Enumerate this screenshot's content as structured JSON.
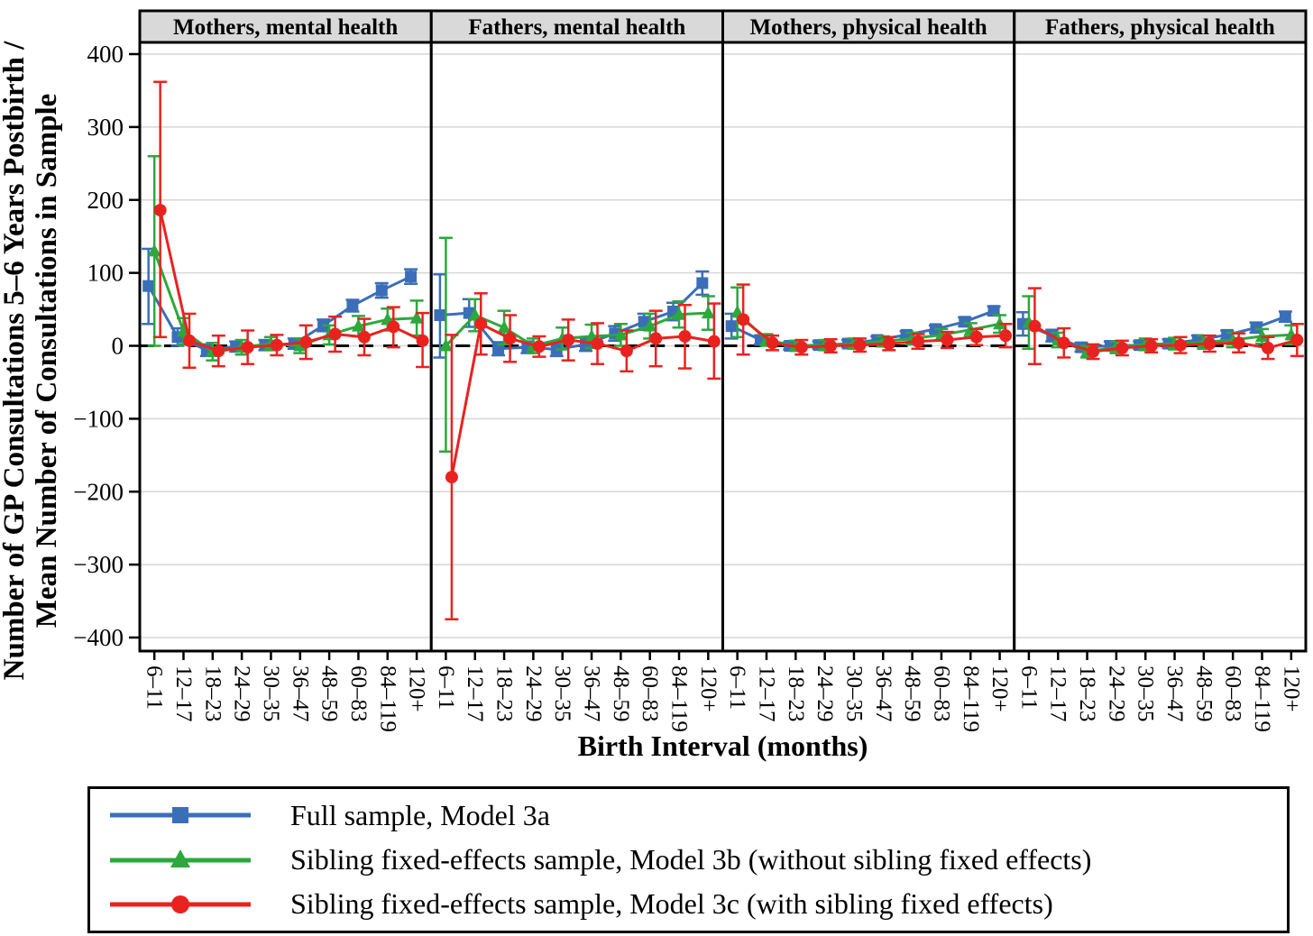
{
  "chart_data": {
    "type": "line",
    "subtype": "faceted-errorbar",
    "xlabel": "Birth Interval (months)",
    "ylabel_line1": "Number of GP Consultations 5–6 Years Postbirth /",
    "ylabel_line2": "Mean Number of Consultations in Sample",
    "categories": [
      "6–11",
      "12–17",
      "18–23",
      "24–29",
      "30–35",
      "36–47",
      "48–59",
      "60–83",
      "84–119",
      "120+"
    ],
    "ylim": [
      -400,
      400
    ],
    "ytick_values": [
      400,
      300,
      200,
      100,
      0,
      -100,
      -200,
      -300,
      -400
    ],
    "ytick_labels": [
      "400",
      "300",
      "200",
      "100",
      "0",
      "−100",
      "−200",
      "−300",
      "−400"
    ],
    "grid": "horizontal-major",
    "zero_line": {
      "style": "dashed",
      "color": "#000000"
    },
    "strip_bg": "#d9d9d9",
    "gridline_color": "#d6d6d6",
    "legend_position": "bottom",
    "series": [
      {
        "id": "model_3a",
        "label": "Full sample, Model 3a",
        "color": "#3b6eb8",
        "marker": "square"
      },
      {
        "id": "model_3b",
        "label": "Sibling fixed-effects sample, Model 3b (without sibling fixed effects)",
        "color": "#2ca83c",
        "marker": "triangle"
      },
      {
        "id": "model_3c",
        "label": "Sibling fixed-effects sample, Model 3c (with sibling fixed effects)",
        "color": "#e8231f",
        "marker": "circle"
      }
    ],
    "facets": [
      {
        "title": "Mothers, mental health",
        "model_3a": {
          "est": [
            82,
            12,
            -6,
            -1,
            1,
            3,
            28,
            55,
            76,
            95
          ],
          "lo": [
            30,
            0,
            -14,
            -8,
            -6,
            -4,
            20,
            47,
            66,
            85
          ],
          "hi": [
            133,
            24,
            2,
            6,
            8,
            10,
            36,
            63,
            86,
            105
          ]
        },
        "model_3b": {
          "est": [
            130,
            20,
            -8,
            -2,
            3,
            0,
            15,
            27,
            36,
            38
          ],
          "lo": [
            0,
            2,
            -20,
            -12,
            -6,
            -10,
            2,
            13,
            21,
            14
          ],
          "hi": [
            260,
            38,
            4,
            8,
            12,
            10,
            28,
            41,
            51,
            62
          ]
        },
        "model_3c": {
          "est": [
            186,
            7,
            -7,
            -2,
            1,
            5,
            16,
            12,
            26,
            7
          ],
          "lo": [
            12,
            -30,
            -28,
            -25,
            -13,
            -18,
            -8,
            -13,
            -2,
            -29
          ],
          "hi": [
            362,
            44,
            14,
            21,
            15,
            28,
            40,
            37,
            53,
            45
          ]
        }
      },
      {
        "title": "Fathers, mental health",
        "model_3a": {
          "est": [
            42,
            45,
            -4,
            -2,
            -5,
            2,
            17,
            33,
            47,
            86
          ],
          "lo": [
            -16,
            26,
            -13,
            -10,
            -14,
            -7,
            7,
            22,
            35,
            70
          ],
          "hi": [
            98,
            64,
            5,
            6,
            4,
            11,
            27,
            44,
            59,
            102
          ]
        },
        "model_3b": {
          "est": [
            0,
            42,
            25,
            0,
            10,
            13,
            15,
            27,
            43,
            45
          ],
          "lo": [
            -145,
            20,
            2,
            -10,
            -5,
            -3,
            0,
            10,
            25,
            22
          ],
          "hi": [
            148,
            64,
            48,
            10,
            25,
            29,
            30,
            44,
            61,
            68
          ]
        },
        "model_3c": {
          "est": [
            -180,
            30,
            10,
            -1,
            8,
            3,
            -7,
            10,
            13,
            6
          ],
          "lo": [
            -375,
            -12,
            -22,
            -15,
            -20,
            -25,
            -35,
            -28,
            -31,
            -45
          ],
          "hi": [
            15,
            72,
            42,
            13,
            36,
            31,
            21,
            48,
            56,
            58
          ]
        }
      },
      {
        "title": "Mothers, physical health",
        "model_3a": {
          "est": [
            27,
            8,
            0,
            1,
            3,
            8,
            15,
            23,
            33,
            48
          ],
          "lo": [
            10,
            2,
            -5,
            -4,
            -2,
            3,
            10,
            18,
            27,
            42
          ],
          "hi": [
            44,
            14,
            5,
            6,
            8,
            13,
            20,
            28,
            39,
            54
          ]
        },
        "model_3b": {
          "est": [
            46,
            8,
            0,
            1,
            3,
            6,
            10,
            15,
            22,
            30
          ],
          "lo": [
            12,
            0,
            -7,
            -6,
            -4,
            -1,
            2,
            7,
            13,
            18
          ],
          "hi": [
            80,
            16,
            7,
            8,
            10,
            13,
            18,
            23,
            31,
            42
          ]
        },
        "model_3c": {
          "est": [
            36,
            4,
            -2,
            0,
            1,
            3,
            6,
            8,
            12,
            14
          ],
          "lo": [
            -12,
            -6,
            -12,
            -9,
            -8,
            -6,
            -4,
            -3,
            1,
            -2
          ],
          "hi": [
            84,
            14,
            8,
            9,
            10,
            12,
            16,
            19,
            23,
            30
          ]
        }
      },
      {
        "title": "Fathers, physical health",
        "model_3a": {
          "est": [
            30,
            14,
            -2,
            0,
            1,
            3,
            8,
            15,
            25,
            40
          ],
          "lo": [
            14,
            6,
            -8,
            -6,
            -4,
            -3,
            2,
            9,
            18,
            33
          ],
          "hi": [
            46,
            22,
            4,
            6,
            6,
            9,
            14,
            21,
            32,
            47
          ]
        },
        "model_3b": {
          "est": [
            32,
            8,
            -8,
            -2,
            2,
            3,
            5,
            8,
            13,
            15
          ],
          "lo": [
            -4,
            -2,
            -16,
            -10,
            -6,
            -5,
            -4,
            -2,
            3,
            2
          ],
          "hi": [
            68,
            18,
            0,
            6,
            10,
            11,
            14,
            18,
            23,
            28
          ]
        },
        "model_3c": {
          "est": [
            27,
            4,
            -8,
            -3,
            0,
            1,
            3,
            4,
            -3,
            8
          ],
          "lo": [
            -25,
            -16,
            -18,
            -13,
            -9,
            -10,
            -8,
            -9,
            -18,
            -14
          ],
          "hi": [
            79,
            24,
            2,
            7,
            9,
            12,
            14,
            17,
            12,
            30
          ]
        }
      }
    ]
  }
}
